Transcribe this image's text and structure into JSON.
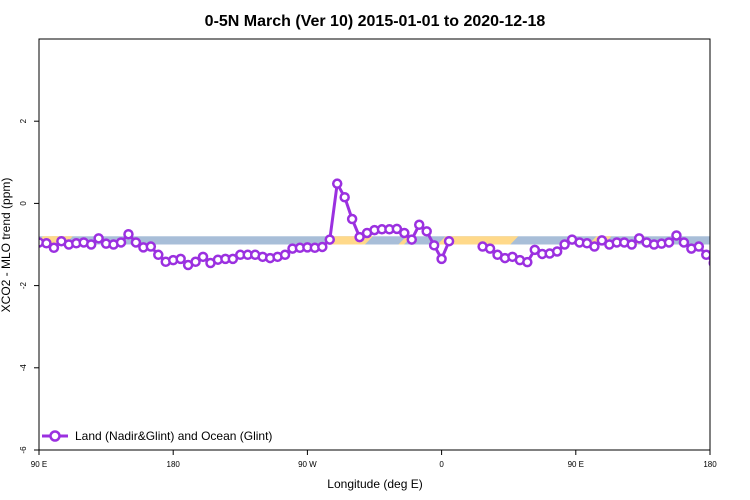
{
  "chart_data": {
    "type": "line",
    "title": "0-5N March (Ver 10)   2015-01-01 to 2020-12-18",
    "xlabel": "Longitude (deg E)",
    "ylabel": "XCO2 - MLO trend (ppm)",
    "xlim": [
      -90,
      270
    ],
    "ylim": [
      -6,
      4
    ],
    "x_ticks": [
      {
        "value": -90,
        "label": "90 E"
      },
      {
        "value": -18,
        "label": "180"
      },
      {
        "value": 54,
        "label": "90 W"
      },
      {
        "value": 126,
        "label": "0"
      },
      {
        "value": 198,
        "label": "90 E"
      },
      {
        "value": 270,
        "label": "180"
      }
    ],
    "y_ticks": [
      {
        "value": -6,
        "label": "-6"
      },
      {
        "value": -4,
        "label": "-4"
      },
      {
        "value": -2,
        "label": "-2"
      },
      {
        "value": 0,
        "label": "0"
      },
      {
        "value": 2,
        "label": "2"
      }
    ],
    "surface_band": {
      "y_range": [
        -1.0,
        -0.8
      ],
      "land_color": "#FFD98A",
      "ocean_color": "#A8BED8",
      "land_segments": [
        [
          -90,
          -82
        ],
        [
          -85,
          -74
        ],
        [
          66,
          87
        ],
        [
          105,
          108
        ],
        [
          126,
          165
        ],
        [
          207,
          215
        ],
        [
          230,
          233
        ]
      ]
    },
    "legend": {
      "position": "bottom-left"
    },
    "series": [
      {
        "name": "Land (Nadir&Glint) and Ocean (Glint)",
        "color": "#9B30E0",
        "segments": [
          [
            [
              -90,
              -0.95
            ],
            [
              -86,
              -0.97
            ],
            [
              -82,
              -1.08
            ],
            [
              -78,
              -0.92
            ],
            [
              -74,
              -1.0
            ],
            [
              -70,
              -0.97
            ],
            [
              -66,
              -0.95
            ],
            [
              -62,
              -1.0
            ],
            [
              -58,
              -0.85
            ],
            [
              -54,
              -0.98
            ],
            [
              -50,
              -1.0
            ],
            [
              -46,
              -0.95
            ],
            [
              -42,
              -0.75
            ],
            [
              -38,
              -0.95
            ],
            [
              -34,
              -1.07
            ],
            [
              -30,
              -1.05
            ],
            [
              -26,
              -1.25
            ],
            [
              -22,
              -1.42
            ],
            [
              -18,
              -1.38
            ],
            [
              -14,
              -1.35
            ],
            [
              -10,
              -1.5
            ],
            [
              -6,
              -1.42
            ],
            [
              -2,
              -1.3
            ],
            [
              2,
              -1.45
            ],
            [
              6,
              -1.37
            ],
            [
              10,
              -1.35
            ],
            [
              14,
              -1.35
            ],
            [
              18,
              -1.25
            ],
            [
              22,
              -1.25
            ],
            [
              26,
              -1.25
            ],
            [
              30,
              -1.3
            ],
            [
              34,
              -1.33
            ],
            [
              38,
              -1.3
            ],
            [
              42,
              -1.25
            ],
            [
              46,
              -1.1
            ],
            [
              50,
              -1.08
            ],
            [
              54,
              -1.07
            ],
            [
              58,
              -1.08
            ],
            [
              62,
              -1.06
            ],
            [
              66,
              -0.88
            ],
            [
              70,
              0.48
            ],
            [
              74,
              0.15
            ],
            [
              78,
              -0.38
            ],
            [
              82,
              -0.82
            ],
            [
              86,
              -0.72
            ],
            [
              90,
              -0.65
            ],
            [
              94,
              -0.63
            ],
            [
              98,
              -0.63
            ],
            [
              102,
              -0.62
            ],
            [
              106,
              -0.72
            ],
            [
              110,
              -0.88
            ],
            [
              114,
              -0.52
            ],
            [
              118,
              -0.68
            ],
            [
              122,
              -1.02
            ],
            [
              126,
              -1.35
            ],
            [
              130,
              -0.92
            ]
          ],
          [
            [
              148,
              -1.05
            ],
            [
              152,
              -1.1
            ],
            [
              156,
              -1.25
            ],
            [
              160,
              -1.33
            ],
            [
              164,
              -1.3
            ],
            [
              168,
              -1.38
            ],
            [
              172,
              -1.43
            ],
            [
              176,
              -1.13
            ],
            [
              180,
              -1.23
            ],
            [
              184,
              -1.22
            ],
            [
              188,
              -1.17
            ],
            [
              192,
              -1.0
            ],
            [
              196,
              -0.88
            ],
            [
              200,
              -0.95
            ],
            [
              204,
              -0.97
            ],
            [
              208,
              -1.05
            ],
            [
              212,
              -0.9
            ],
            [
              216,
              -1.0
            ],
            [
              220,
              -0.95
            ],
            [
              224,
              -0.95
            ],
            [
              228,
              -1.0
            ],
            [
              232,
              -0.85
            ],
            [
              236,
              -0.95
            ],
            [
              240,
              -1.0
            ],
            [
              244,
              -0.98
            ],
            [
              248,
              -0.95
            ],
            [
              252,
              -0.78
            ],
            [
              256,
              -0.95
            ],
            [
              260,
              -1.1
            ],
            [
              264,
              -1.05
            ],
            [
              268,
              -1.25
            ],
            [
              272,
              -1.45
            ]
          ]
        ]
      }
    ]
  }
}
